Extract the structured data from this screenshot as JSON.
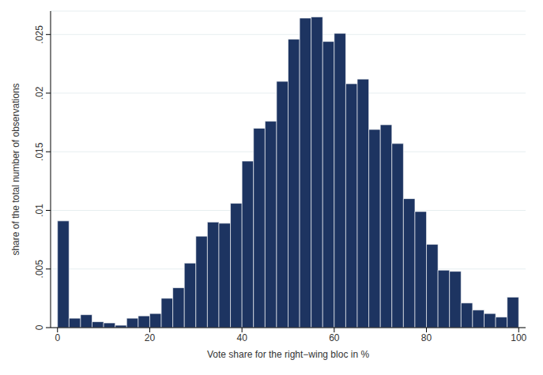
{
  "chart_data": {
    "type": "histogram",
    "x_label": "Vote share for the right−wing bloc in %",
    "y_label": "share of the total number of observations",
    "bins": [
      0,
      2.5,
      5,
      7.5,
      10,
      12.5,
      15,
      17.5,
      20,
      22.5,
      25,
      27.5,
      30,
      32.5,
      35,
      37.5,
      40,
      42.5,
      45,
      47.5,
      50,
      52.5,
      55,
      57.5,
      60,
      62.5,
      65,
      67.5,
      70,
      72.5,
      75,
      77.5,
      80,
      82.5,
      85,
      87.5,
      90,
      92.5,
      95,
      97.5,
      100
    ],
    "values": [
      0.0091,
      0.0008,
      0.0011,
      0.0005,
      0.0004,
      0.0002,
      0.0008,
      0.001,
      0.0012,
      0.0025,
      0.0034,
      0.0055,
      0.0078,
      0.009,
      0.0089,
      0.0106,
      0.0142,
      0.017,
      0.0176,
      0.021,
      0.0246,
      0.0264,
      0.0265,
      0.0244,
      0.0251,
      0.0208,
      0.0212,
      0.0169,
      0.0173,
      0.0157,
      0.011,
      0.0099,
      0.0071,
      0.0049,
      0.0048,
      0.0021,
      0.0015,
      0.0012,
      0.0009,
      0.0026
    ],
    "color": "#1d3461",
    "xlim": [
      -1.5,
      101.5
    ],
    "xticks": [
      0,
      20,
      40,
      60,
      80,
      100
    ],
    "ylim": [
      0,
      0.027
    ],
    "yticks": [
      0,
      {
        "value": 0.005,
        "label": ".005"
      },
      {
        "value": 0.01,
        "label": ".01"
      },
      {
        "value": 0.015,
        "label": ".015"
      },
      {
        "value": 0.02,
        "label": ".02"
      },
      {
        "value": 0.025,
        "label": ".025"
      }
    ],
    "grid": true
  }
}
